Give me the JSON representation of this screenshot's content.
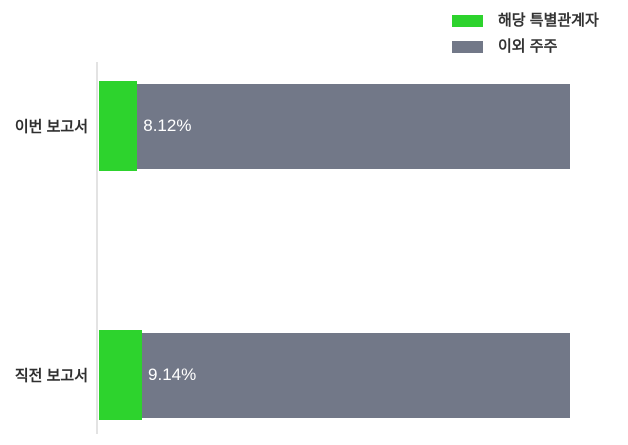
{
  "chart_data": {
    "type": "bar",
    "orientation": "horizontal",
    "stacked": true,
    "unit": "%",
    "title": "",
    "xlabel": "",
    "ylabel": "",
    "xlim": [
      0,
      100
    ],
    "grid": false,
    "legend_position": "top-right",
    "categories": [
      "이번 보고서",
      "직전 보고서"
    ],
    "series": [
      {
        "name": "해당 특별관계자",
        "color": "#2dd32d",
        "values": [
          8.12,
          9.14
        ]
      },
      {
        "name": "이외 주주",
        "color": "#727888",
        "values": [
          91.88,
          90.86
        ]
      }
    ],
    "bar_labels": [
      "8.12%",
      "9.14%"
    ],
    "bar_label_color": "#ffffff",
    "category_label_color": "#2f2f2f",
    "legend_text_color": "#333333",
    "axis_line_color": "#e3e3e3",
    "background_color": "#ffffff"
  }
}
